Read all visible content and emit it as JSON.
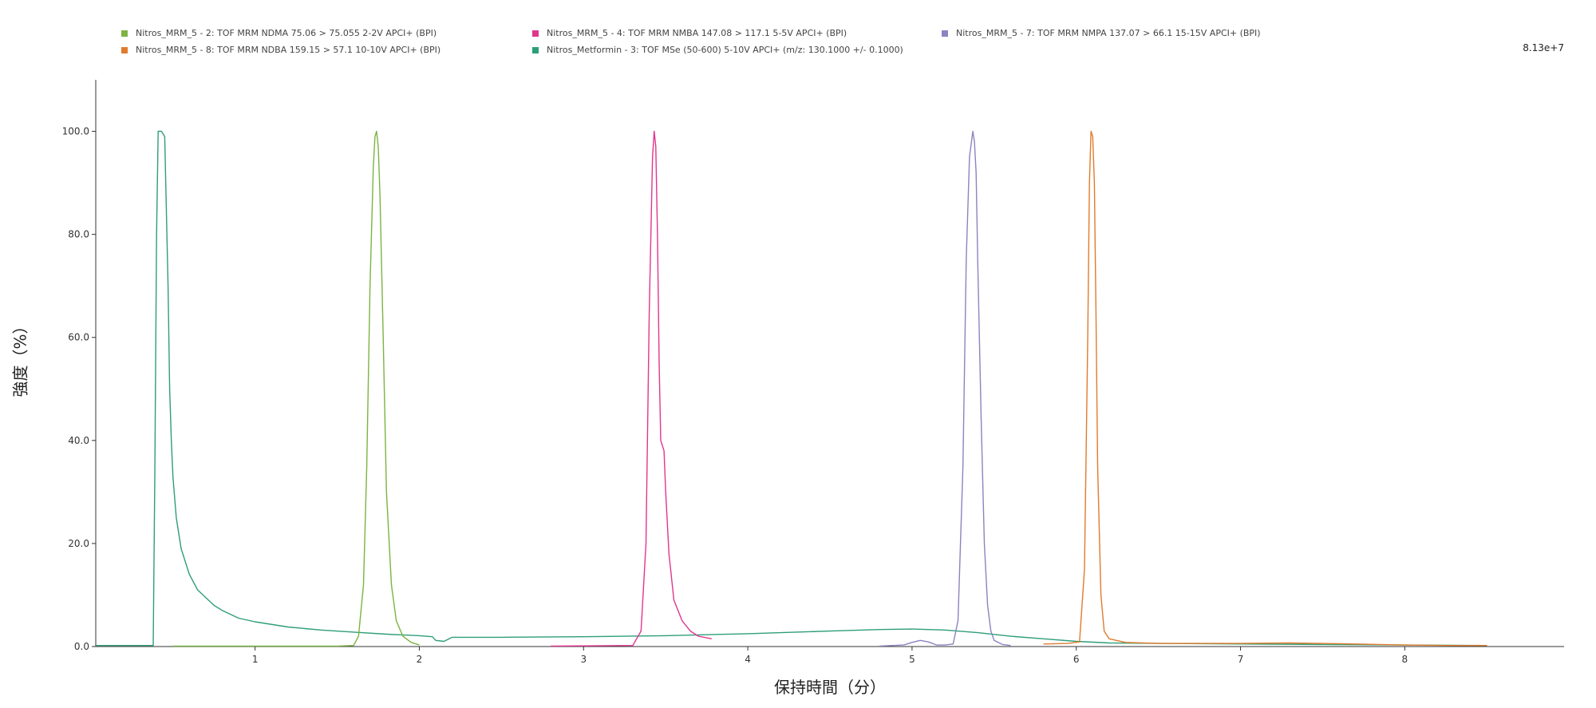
{
  "legend": {
    "items": [
      {
        "label": "Nitros_MRM_5 - 2: TOF MRM NDMA 75.06 > 75.055 2-2V APCI+ (BPI)",
        "color": "#7cb342"
      },
      {
        "label": "Nitros_MRM_5 - 4: TOF MRM NMBA 147.08 > 117.1 5-5V APCI+ (BPI)",
        "color": "#e0368e"
      },
      {
        "label": "Nitros_MRM_5 - 7: TOF MRM NMPA 137.07 > 66.1 15-15V APCI+ (BPI)",
        "color": "#8a84c0"
      },
      {
        "label": "Nitros_MRM_5 - 8: TOF MRM NDBA 159.15 > 57.1 10-10V APCI+ (BPI)",
        "color": "#e07b2c"
      },
      {
        "label": "Nitros_Metformin - 3: TOF MSe (50-600) 5-10V APCI+ (m/z: 130.1000 +/- 0.1000)",
        "color": "#2e9e78"
      }
    ]
  },
  "scale_label": "8.13e+7",
  "chart_data": {
    "type": "line",
    "xlabel": "保持時間（分）",
    "ylabel": "強度（%）",
    "xlim": [
      0.03,
      8.97
    ],
    "ylim": [
      0,
      110
    ],
    "x_ticks": [
      1,
      2,
      3,
      4,
      5,
      6,
      7,
      8
    ],
    "y_ticks": [
      0.0,
      20.0,
      40.0,
      60.0,
      80.0,
      100.0
    ],
    "x_tick_labels": [
      "1",
      "2",
      "3",
      "4",
      "5",
      "6",
      "7",
      "8"
    ],
    "y_tick_labels": [
      "0.0",
      "20.0",
      "40.0",
      "60.0",
      "80.0",
      "100.0"
    ],
    "grid": false,
    "legend_position": "top",
    "series": [
      {
        "name": "Nitros_Metformin - 3: TOF MSe (50-600) 5-10V APCI+ (m/z: 130.1000 +/- 0.1000)",
        "color": "#2e9e78",
        "x": [
          0.03,
          0.2,
          0.38,
          0.39,
          0.4,
          0.41,
          0.43,
          0.45,
          0.47,
          0.48,
          0.49,
          0.5,
          0.52,
          0.55,
          0.6,
          0.65,
          0.7,
          0.75,
          0.8,
          0.9,
          1.0,
          1.2,
          1.4,
          1.6,
          1.8,
          2.0,
          2.08,
          2.1,
          2.15,
          2.2,
          2.5,
          3.0,
          3.5,
          4.0,
          4.5,
          4.8,
          5.0,
          5.2,
          5.4,
          5.6,
          5.8,
          6.0,
          6.2,
          6.5,
          7.0,
          7.5,
          8.0,
          8.5
        ],
        "y": [
          0.2,
          0.2,
          0.2,
          35,
          80,
          100,
          100,
          99,
          70,
          50,
          40,
          33,
          25,
          19,
          14,
          11,
          9.5,
          8,
          7,
          5.5,
          4.8,
          3.8,
          3.2,
          2.8,
          2.4,
          2.1,
          1.9,
          1.2,
          1.0,
          1.8,
          1.8,
          1.9,
          2.1,
          2.5,
          3.0,
          3.3,
          3.4,
          3.2,
          2.7,
          2.0,
          1.5,
          1.0,
          0.7,
          0.6,
          0.5,
          0.4,
          0.3,
          0.2
        ]
      },
      {
        "name": "Nitros_MRM_5 - 2: TOF MRM NDMA 75.06 > 75.055 2-2V APCI+ (BPI)",
        "color": "#7cb342",
        "x": [
          0.5,
          1.0,
          1.5,
          1.6,
          1.63,
          1.66,
          1.68,
          1.7,
          1.72,
          1.73,
          1.74,
          1.75,
          1.76,
          1.78,
          1.8,
          1.83,
          1.86,
          1.9,
          1.95,
          2.0
        ],
        "y": [
          0.1,
          0.1,
          0.1,
          0.2,
          2,
          12,
          35,
          70,
          93,
          99,
          100,
          97,
          88,
          60,
          30,
          12,
          5,
          2,
          0.8,
          0.3
        ]
      },
      {
        "name": "Nitros_MRM_5 - 4: TOF MRM NMBA 147.08 > 117.1 5-5V APCI+ (BPI)",
        "color": "#e0368e",
        "x": [
          2.8,
          3.3,
          3.35,
          3.38,
          3.4,
          3.42,
          3.43,
          3.44,
          3.45,
          3.46,
          3.47,
          3.49,
          3.5,
          3.52,
          3.55,
          3.6,
          3.65,
          3.7,
          3.78
        ],
        "y": [
          0.1,
          0.2,
          3,
          20,
          65,
          95,
          100,
          97,
          80,
          55,
          40,
          38,
          30,
          18,
          9,
          5,
          3,
          2,
          1.5
        ]
      },
      {
        "name": "Nitros_MRM_5 - 7: TOF MRM NMPA 137.07 > 66.1 15-15V APCI+ (BPI)",
        "color": "#8a84c0",
        "x": [
          4.8,
          4.95,
          5.0,
          5.05,
          5.1,
          5.15,
          5.2,
          5.25,
          5.28,
          5.31,
          5.33,
          5.35,
          5.37,
          5.38,
          5.39,
          5.4,
          5.42,
          5.44,
          5.46,
          5.48,
          5.5,
          5.55,
          5.6
        ],
        "y": [
          0.1,
          0.3,
          0.8,
          1.2,
          0.9,
          0.3,
          0.3,
          0.5,
          5,
          35,
          75,
          95,
          100,
          98,
          92,
          75,
          45,
          20,
          8,
          3,
          1.2,
          0.4,
          0.2
        ]
      },
      {
        "name": "Nitros_MRM_5 - 8: TOF MRM NDBA 159.15 > 57.1 10-10V APCI+ (BPI)",
        "color": "#e07b2c",
        "x": [
          5.8,
          5.95,
          6.02,
          6.05,
          6.07,
          6.08,
          6.09,
          6.1,
          6.11,
          6.12,
          6.13,
          6.15,
          6.17,
          6.2,
          6.3,
          6.5,
          7.0,
          7.3,
          7.5,
          7.7,
          8.0,
          8.3,
          8.5
        ],
        "y": [
          0.5,
          0.6,
          0.9,
          15,
          60,
          90,
          100,
          99,
          90,
          65,
          35,
          10,
          3,
          1.5,
          0.8,
          0.6,
          0.6,
          0.7,
          0.6,
          0.5,
          0.3,
          0.2,
          0.2
        ]
      }
    ]
  }
}
